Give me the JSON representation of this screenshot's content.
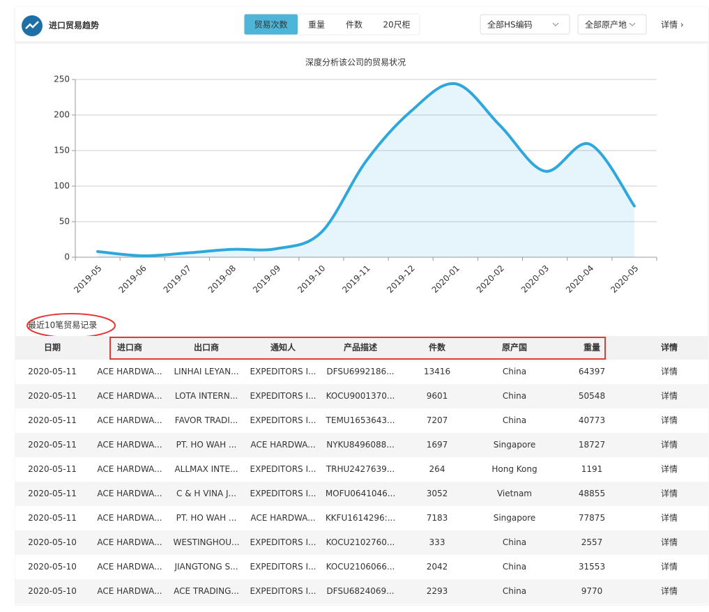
{
  "header": {
    "title": "进口贸易趋势",
    "tabs": [
      "贸易次数",
      "重量",
      "件数",
      "20尺柜"
    ],
    "active_tab": 0,
    "filters": [
      "全部HS编码",
      "全部原产地"
    ],
    "detail_link": "详情 ›"
  },
  "chart_data": {
    "type": "area",
    "title": "深度分析该公司的贸易状况",
    "categories": [
      "2019-05",
      "2019-06",
      "2019-07",
      "2019-08",
      "2019-09",
      "2019-10",
      "2019-11",
      "2019-12",
      "2020-01",
      "2020-02",
      "2020-03",
      "2020-04",
      "2020-05"
    ],
    "series": [
      {
        "name": "贸易次数",
        "color": "#2ea7dc",
        "values": [
          8,
          2,
          6,
          11,
          12,
          35,
          135,
          205,
          244,
          185,
          121,
          159,
          72
        ]
      }
    ],
    "ylim": [
      0,
      250
    ],
    "yticks": [
      0,
      50,
      100,
      150,
      200,
      250
    ],
    "grid": true
  },
  "table": {
    "caption": "最近10笔贸易记录",
    "columns": [
      "日期",
      "进口商",
      "出口商",
      "通知人",
      "产品描述",
      "件数",
      "原产国",
      "重量",
      "详情"
    ],
    "rows": [
      [
        "2020-05-11",
        "ACE HARDWA...",
        "LINHAI LEYAN...",
        "EXPEDITORS I...",
        "DFSU6992186...",
        "13416",
        "China",
        "64397",
        "详情"
      ],
      [
        "2020-05-11",
        "ACE HARDWA...",
        "LOTA INTERN...",
        "EXPEDITORS I...",
        "KOCU9001370...",
        "9601",
        "China",
        "50548",
        "详情"
      ],
      [
        "2020-05-11",
        "ACE HARDWA...",
        "FAVOR TRADI...",
        "EXPEDITORS I...",
        "TEMU1653643...",
        "7207",
        "China",
        "40773",
        "详情"
      ],
      [
        "2020-05-11",
        "ACE HARDWA...",
        "PT. HO WAH ...",
        "ACE HARDWA...",
        "NYKU8496088...",
        "1697",
        "Singapore",
        "18727",
        "详情"
      ],
      [
        "2020-05-11",
        "ACE HARDWA...",
        "ALLMAX INTE...",
        "EXPEDITORS I...",
        "TRHU2427639...",
        "264",
        "Hong Kong",
        "1191",
        "详情"
      ],
      [
        "2020-05-11",
        "ACE HARDWA...",
        "C & H VINA J...",
        "EXPEDITORS I...",
        "MOFU0641046...",
        "3052",
        "Vietnam",
        "48855",
        "详情"
      ],
      [
        "2020-05-11",
        "ACE HARDWA...",
        "PT. HO WAH ...",
        "ACE HARDWA...",
        "KKFU1614296:...",
        "7183",
        "Singapore",
        "77875",
        "详情"
      ],
      [
        "2020-05-10",
        "ACE HARDWA...",
        "WESTINGHOU...",
        "EXPEDITORS I...",
        "KOCU2102760...",
        "333",
        "China",
        "2557",
        "详情"
      ],
      [
        "2020-05-10",
        "ACE HARDWA...",
        "JIANGTONG S...",
        "EXPEDITORS I...",
        "KOCU2106066...",
        "2042",
        "China",
        "31553",
        "详情"
      ],
      [
        "2020-05-10",
        "ACE HARDWA...",
        "ACE TRADING...",
        "EXPEDITORS I...",
        "DFSU6824069...",
        "2293",
        "China",
        "9770",
        "详情"
      ]
    ]
  }
}
